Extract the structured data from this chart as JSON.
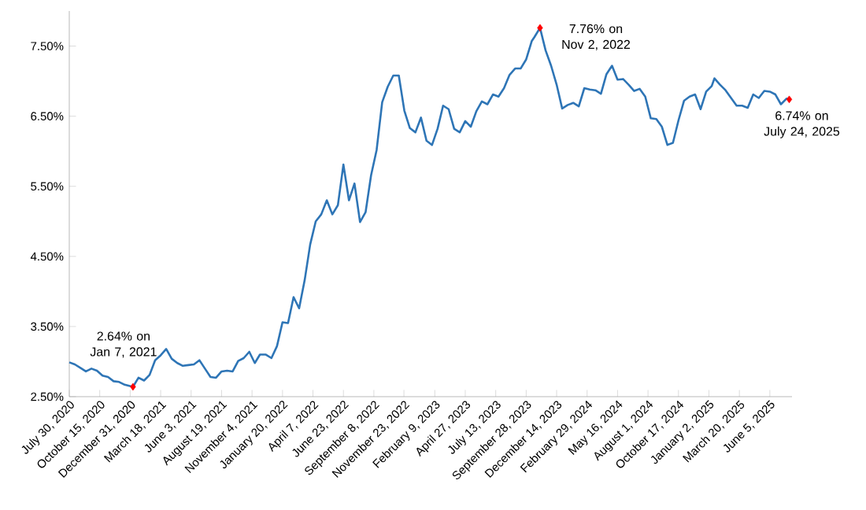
{
  "chart_data": {
    "type": "line",
    "x": [
      "2020-07-30",
      "2020-08-13",
      "2020-08-27",
      "2020-09-10",
      "2020-09-24",
      "2020-10-08",
      "2020-10-22",
      "2020-11-05",
      "2020-11-19",
      "2020-12-03",
      "2020-12-17",
      "2021-01-07",
      "2021-01-21",
      "2021-02-04",
      "2021-02-18",
      "2021-03-04",
      "2021-03-18",
      "2021-04-01",
      "2021-04-15",
      "2021-04-29",
      "2021-05-13",
      "2021-05-27",
      "2021-06-10",
      "2021-06-24",
      "2021-07-08",
      "2021-07-22",
      "2021-08-05",
      "2021-08-19",
      "2021-09-02",
      "2021-09-16",
      "2021-09-30",
      "2021-10-14",
      "2021-10-28",
      "2021-11-11",
      "2021-11-24",
      "2021-12-09",
      "2021-12-23",
      "2022-01-06",
      "2022-01-20",
      "2022-02-03",
      "2022-02-17",
      "2022-03-03",
      "2022-03-17",
      "2022-03-31",
      "2022-04-14",
      "2022-04-28",
      "2022-05-12",
      "2022-05-26",
      "2022-06-09",
      "2022-06-23",
      "2022-07-07",
      "2022-07-21",
      "2022-08-04",
      "2022-08-18",
      "2022-09-01",
      "2022-09-15",
      "2022-09-29",
      "2022-10-13",
      "2022-10-27",
      "2022-11-10",
      "2022-11-24",
      "2022-12-08",
      "2022-12-22",
      "2023-01-05",
      "2023-01-19",
      "2023-02-02",
      "2023-02-16",
      "2023-03-02",
      "2023-03-16",
      "2023-03-30",
      "2023-04-13",
      "2023-04-27",
      "2023-05-11",
      "2023-05-25",
      "2023-06-08",
      "2023-06-22",
      "2023-07-06",
      "2023-07-20",
      "2023-08-03",
      "2023-08-17",
      "2023-08-31",
      "2023-09-14",
      "2023-09-28",
      "2023-10-12",
      "2023-10-19",
      "2023-11-02",
      "2023-11-16",
      "2023-11-30",
      "2023-12-14",
      "2023-12-28",
      "2024-01-11",
      "2024-01-25",
      "2024-02-08",
      "2024-02-22",
      "2024-03-07",
      "2024-03-21",
      "2024-04-04",
      "2024-04-18",
      "2024-05-02",
      "2024-05-16",
      "2024-05-30",
      "2024-06-13",
      "2024-06-27",
      "2024-07-11",
      "2024-07-25",
      "2024-08-08",
      "2024-08-22",
      "2024-09-05",
      "2024-09-19",
      "2024-10-03",
      "2024-10-17",
      "2024-10-31",
      "2024-11-14",
      "2024-11-28",
      "2024-12-12",
      "2024-12-26",
      "2025-01-09",
      "2025-01-16",
      "2025-01-30",
      "2025-02-13",
      "2025-02-27",
      "2025-03-13",
      "2025-03-27",
      "2025-04-10",
      "2025-04-24",
      "2025-05-08",
      "2025-05-22",
      "2025-06-05",
      "2025-06-19",
      "2025-07-03",
      "2025-07-17",
      "2025-07-24"
    ],
    "series": [
      {
        "color": "#2e75b6",
        "values": [
          2.99,
          2.96,
          2.91,
          2.86,
          2.9,
          2.87,
          2.8,
          2.78,
          2.72,
          2.71,
          2.67,
          2.64,
          2.77,
          2.73,
          2.81,
          3.02,
          3.09,
          3.18,
          3.04,
          2.98,
          2.94,
          2.95,
          2.96,
          3.02,
          2.9,
          2.78,
          2.77,
          2.86,
          2.87,
          2.86,
          3.01,
          3.05,
          3.14,
          2.98,
          3.1,
          3.1,
          3.05,
          3.22,
          3.56,
          3.55,
          3.92,
          3.76,
          4.16,
          4.67,
          5.0,
          5.1,
          5.3,
          5.1,
          5.23,
          5.81,
          5.3,
          5.54,
          4.99,
          5.13,
          5.66,
          6.02,
          6.7,
          6.92,
          7.08,
          7.08,
          6.58,
          6.33,
          6.27,
          6.48,
          6.15,
          6.09,
          6.32,
          6.65,
          6.6,
          6.32,
          6.27,
          6.43,
          6.35,
          6.57,
          6.71,
          6.67,
          6.81,
          6.78,
          6.9,
          7.09,
          7.18,
          7.18,
          7.31,
          7.57,
          7.63,
          7.76,
          7.44,
          7.22,
          6.95,
          6.61,
          6.66,
          6.69,
          6.64,
          6.9,
          6.88,
          6.87,
          6.82,
          7.1,
          7.22,
          7.02,
          7.03,
          6.95,
          6.86,
          6.89,
          6.78,
          6.47,
          6.46,
          6.35,
          6.09,
          6.12,
          6.44,
          6.72,
          6.78,
          6.81,
          6.6,
          6.85,
          6.93,
          7.04,
          6.95,
          6.87,
          6.76,
          6.65,
          6.65,
          6.62,
          6.81,
          6.76,
          6.86,
          6.85,
          6.81,
          6.67,
          6.75,
          6.74
        ]
      },
      {
        "type": "scatter",
        "marker": "diamond",
        "color": "#ff0000",
        "x": [
          "2021-01-07",
          "2023-11-02",
          "2025-07-24"
        ],
        "values": [
          2.64,
          7.76,
          6.74
        ]
      }
    ],
    "annotations": [
      {
        "text": "2.64% on Jan 7, 2021",
        "x": "2021-01-07",
        "y": 2.64
      },
      {
        "text": "7.76% on Nov 2, 2022",
        "x": "2023-11-02",
        "y": 7.76
      },
      {
        "text": "6.74% on July 24, 2025",
        "x": "2025-07-24",
        "y": 6.74
      }
    ],
    "xlim": [
      "2020-07-30",
      "2025-07-31"
    ],
    "xticks": [
      {
        "value": "2020-07-30",
        "label": "July 30, 2020"
      },
      {
        "value": "2020-10-15",
        "label": "October 15, 2020"
      },
      {
        "value": "2020-12-31",
        "label": "December 31, 2020"
      },
      {
        "value": "2021-03-18",
        "label": "March 18, 2021"
      },
      {
        "value": "2021-06-03",
        "label": "June 3, 2021"
      },
      {
        "value": "2021-08-19",
        "label": "August 19, 2021"
      },
      {
        "value": "2021-11-04",
        "label": "November 4, 2021"
      },
      {
        "value": "2022-01-20",
        "label": "January 20, 2022"
      },
      {
        "value": "2022-04-07",
        "label": "April 7, 2022"
      },
      {
        "value": "2022-06-23",
        "label": "June 23, 2022"
      },
      {
        "value": "2022-09-08",
        "label": "September 8, 2022"
      },
      {
        "value": "2022-11-23",
        "label": "November 23, 2022"
      },
      {
        "value": "2023-02-09",
        "label": "February 9, 2023"
      },
      {
        "value": "2023-04-27",
        "label": "April 27, 2023"
      },
      {
        "value": "2023-07-13",
        "label": "July 13, 2023"
      },
      {
        "value": "2023-09-28",
        "label": "September 28, 2023"
      },
      {
        "value": "2023-12-14",
        "label": "December 14, 2023"
      },
      {
        "value": "2024-02-29",
        "label": "February 29, 2024"
      },
      {
        "value": "2024-05-16",
        "label": "May 16, 2024"
      },
      {
        "value": "2024-08-01",
        "label": "August 1, 2024"
      },
      {
        "value": "2024-10-17",
        "label": "October 17, 2024"
      },
      {
        "value": "2025-01-02",
        "label": "January 2, 2025"
      },
      {
        "value": "2025-03-20",
        "label": "March 20, 2025"
      },
      {
        "value": "2025-06-05",
        "label": "June 5, 2025"
      }
    ],
    "ylim": [
      2.5,
      8.0
    ],
    "yticks": [
      {
        "value": 2.5,
        "label": "2.50%"
      },
      {
        "value": 3.5,
        "label": "3.50%"
      },
      {
        "value": 4.5,
        "label": "4.50%"
      },
      {
        "value": 5.5,
        "label": "5.50%"
      },
      {
        "value": 6.5,
        "label": "6.50%"
      },
      {
        "value": 7.5,
        "label": "7.50%"
      }
    ],
    "line_style": "solid",
    "marker": "none",
    "grid": false
  }
}
